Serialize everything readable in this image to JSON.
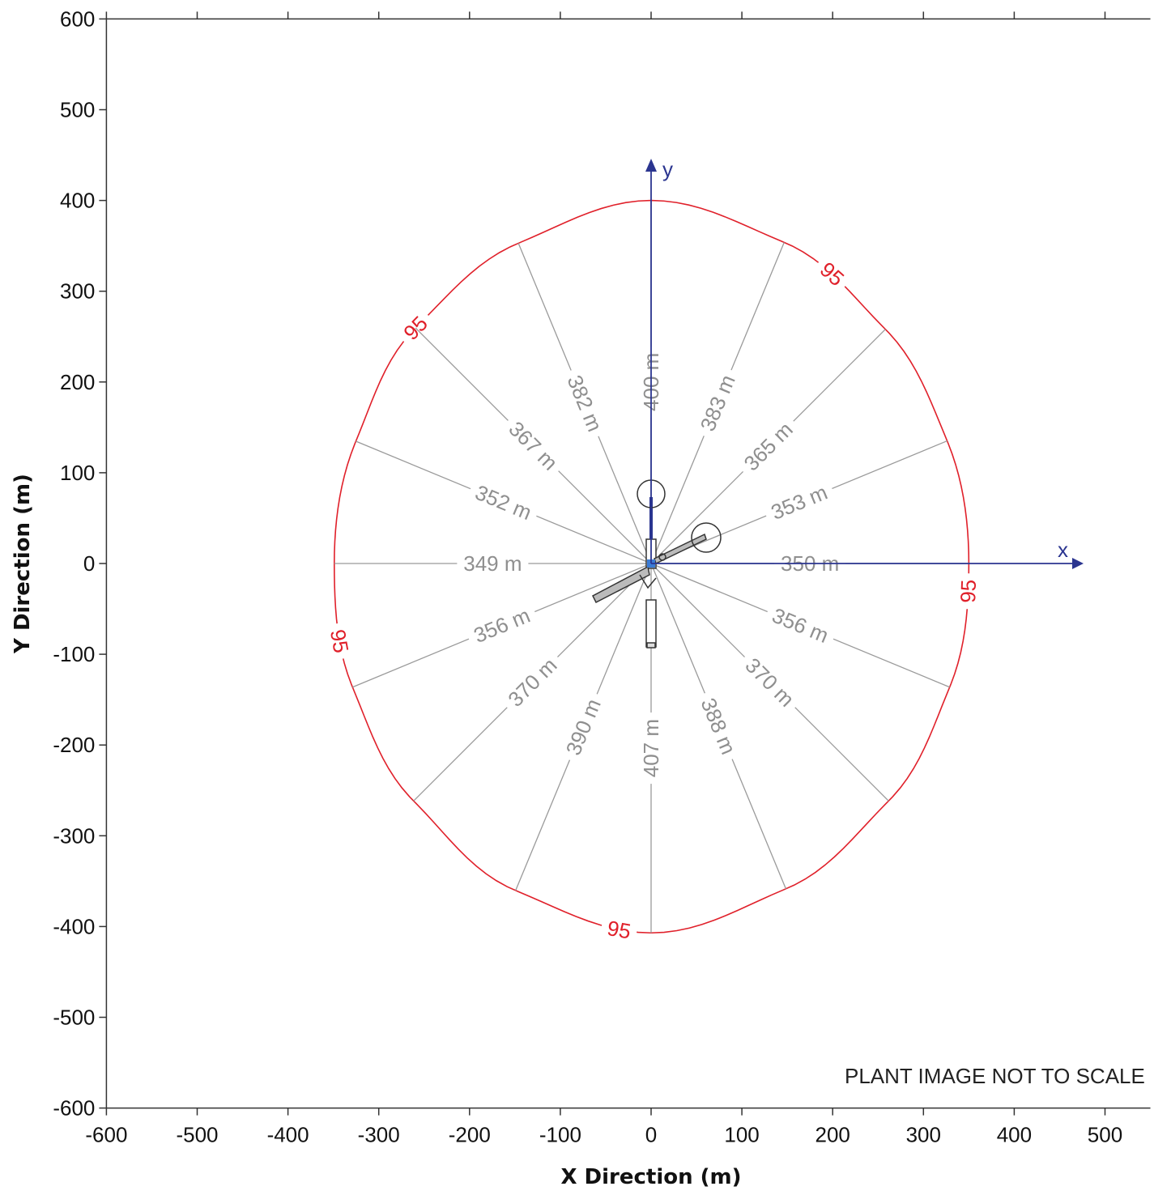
{
  "chart_data": {
    "type": "scatter",
    "title": "",
    "xlabel": "X Direction (m)",
    "ylabel": "Y Direction (m)",
    "xlim": [
      -600,
      550
    ],
    "ylim": [
      -600,
      600
    ],
    "xticks": [
      -600,
      -500,
      -400,
      -300,
      -200,
      -100,
      0,
      100,
      200,
      300,
      400,
      500
    ],
    "yticks": [
      -600,
      -500,
      -400,
      -300,
      -200,
      -100,
      0,
      100,
      200,
      300,
      400,
      500,
      600
    ],
    "grid": false,
    "contour": {
      "level": "95",
      "color": "#e0202a",
      "label_angles": [
        58,
        135,
        194,
        265,
        355
      ]
    },
    "radials": [
      {
        "angle": 0,
        "distance": 350,
        "label": "350 m"
      },
      {
        "angle": 22.5,
        "distance": 353,
        "label": "353 m"
      },
      {
        "angle": 45,
        "distance": 365,
        "label": "365 m"
      },
      {
        "angle": 67.5,
        "distance": 383,
        "label": "383 m"
      },
      {
        "angle": 90,
        "distance": 400,
        "label": "400 m"
      },
      {
        "angle": 112.5,
        "distance": 382,
        "label": "382 m"
      },
      {
        "angle": 135,
        "distance": 367,
        "label": "367 m"
      },
      {
        "angle": 157.5,
        "distance": 352,
        "label": "352 m"
      },
      {
        "angle": 180,
        "distance": 349,
        "label": "349 m"
      },
      {
        "angle": 202.5,
        "distance": 356,
        "label": "356 m"
      },
      {
        "angle": 225,
        "distance": 370,
        "label": "370 m"
      },
      {
        "angle": 247.5,
        "distance": 390,
        "label": "390 m"
      },
      {
        "angle": 270,
        "distance": 407,
        "label": "407 m"
      },
      {
        "angle": 292.5,
        "distance": 388,
        "label": "388 m"
      },
      {
        "angle": 315,
        "distance": 370,
        "label": "370 m"
      },
      {
        "angle": 337.5,
        "distance": 356,
        "label": "356 m"
      }
    ],
    "origin_axes": {
      "x_label": "x",
      "y_label": "y",
      "color": "#2b3590"
    },
    "annotation": "PLANT IMAGE NOT TO SCALE"
  }
}
